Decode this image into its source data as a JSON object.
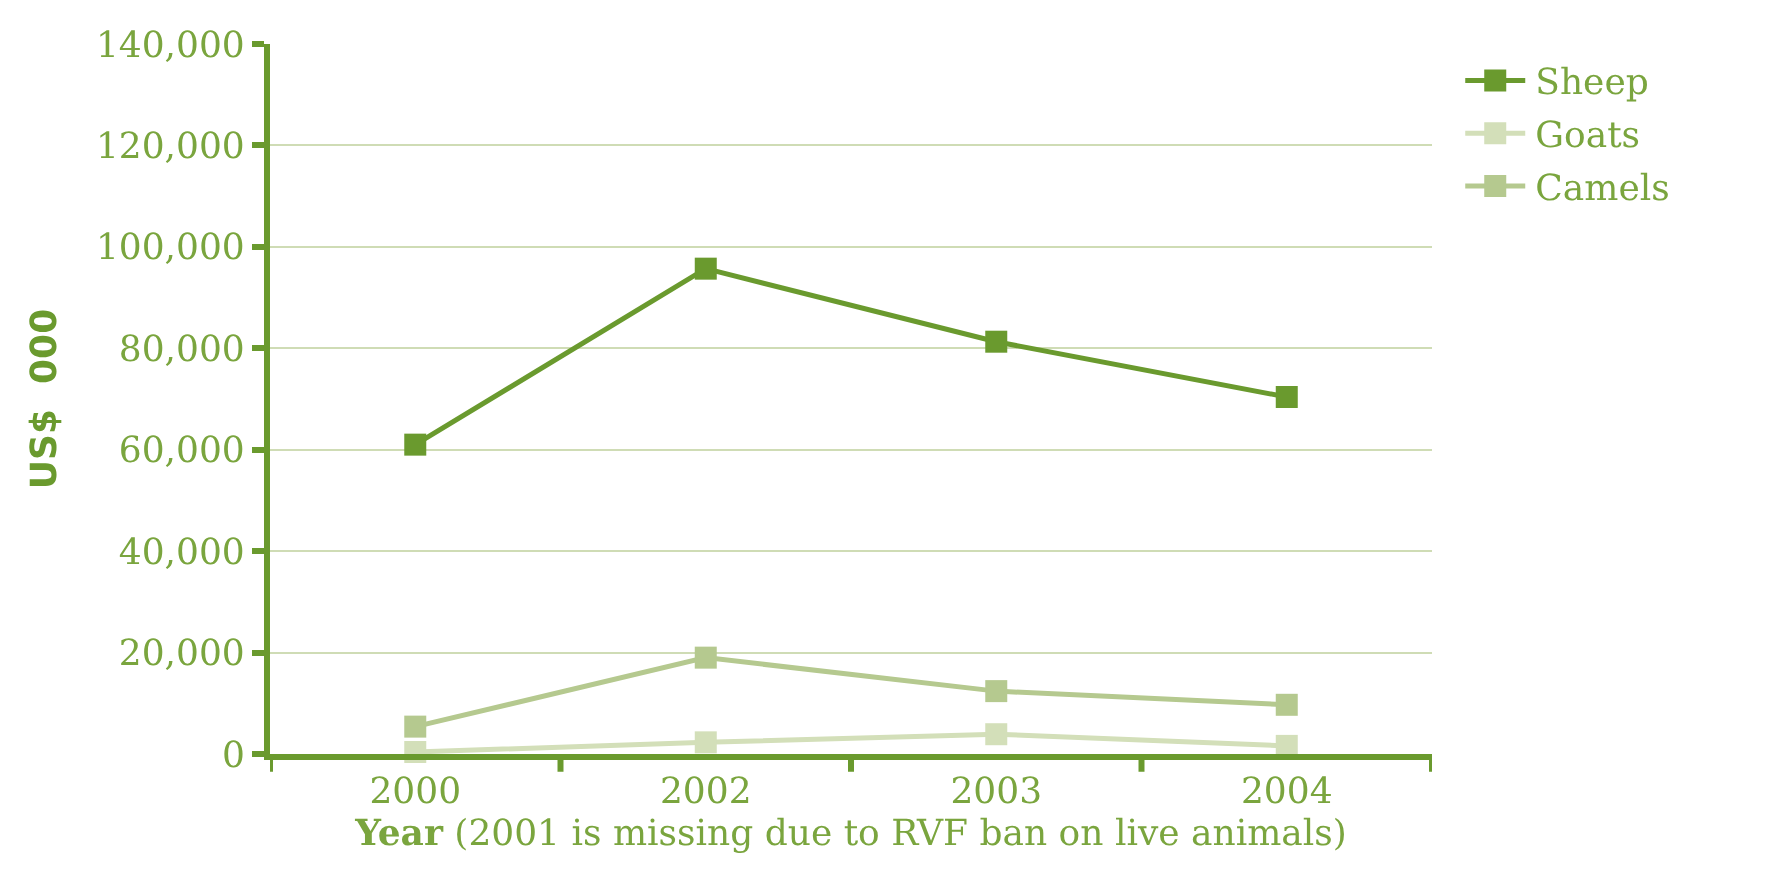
{
  "chart_data": {
    "type": "line",
    "xlabel": "Year (2001 is missing due to RVF ban on live animals)",
    "ylabel": "US$  000",
    "categories": [
      "2000",
      "2002",
      "2003",
      "2004"
    ],
    "series": [
      {
        "name": "Sheep",
        "color": "#6a9a2e",
        "values": [
          61000,
          95700,
          81300,
          70400
        ]
      },
      {
        "name": "Goats",
        "color": "#d3dfb9",
        "values": [
          400,
          2300,
          3900,
          1600
        ]
      },
      {
        "name": "Camels",
        "color": "#b5c98f",
        "values": [
          5400,
          19000,
          12400,
          9700
        ]
      }
    ],
    "ylim": [
      0,
      140000
    ],
    "yticks": [
      {
        "value": 0,
        "label": "0"
      },
      {
        "value": 20000,
        "label": "20,000"
      },
      {
        "value": 40000,
        "label": "40,000"
      },
      {
        "value": 60000,
        "label": "60,000"
      },
      {
        "value": 80000,
        "label": "80,000"
      },
      {
        "value": 100000,
        "label": "100,000"
      },
      {
        "value": 120000,
        "label": "120,000"
      },
      {
        "value": 140000,
        "label": "140,000"
      }
    ],
    "grid": "y",
    "legend": "top right",
    "marker": "square",
    "line_style": "solid"
  }
}
